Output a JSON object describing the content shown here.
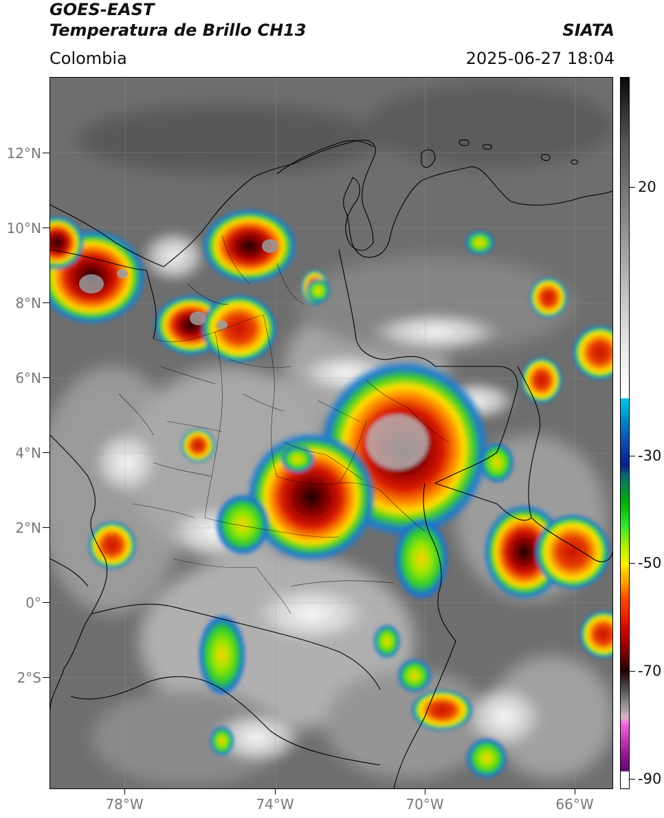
{
  "header": {
    "title_line1": "GOES-EAST",
    "title_line2": "Temperatura de Brillo CH13",
    "brand": "SIATA",
    "region": "Colombia",
    "datetime": "2025-06-27 18:04"
  },
  "map": {
    "lon_range": [
      -80,
      -65
    ],
    "lat_range": [
      -4.9,
      14
    ],
    "lat_labels": [
      "12°N",
      "10°N",
      "8°N",
      "6°N",
      "4°N",
      "2°N",
      "0°",
      "2°S"
    ],
    "lon_labels": [
      "78°W",
      "74°W",
      "70°W",
      "66°W"
    ]
  },
  "colorbar": {
    "labels": [
      "20",
      "-30",
      "-50",
      "-70",
      "-90"
    ]
  },
  "colors": {
    "background_cloud_gray": "#6e6e6e",
    "cold_cloud_red": "#cc1a00",
    "cold_cloud_yellow": "#ffd800",
    "cold_cloud_green": "#2ecc2e",
    "cold_cloud_blue": "#1a6ed8",
    "border_lines": "#000000"
  }
}
